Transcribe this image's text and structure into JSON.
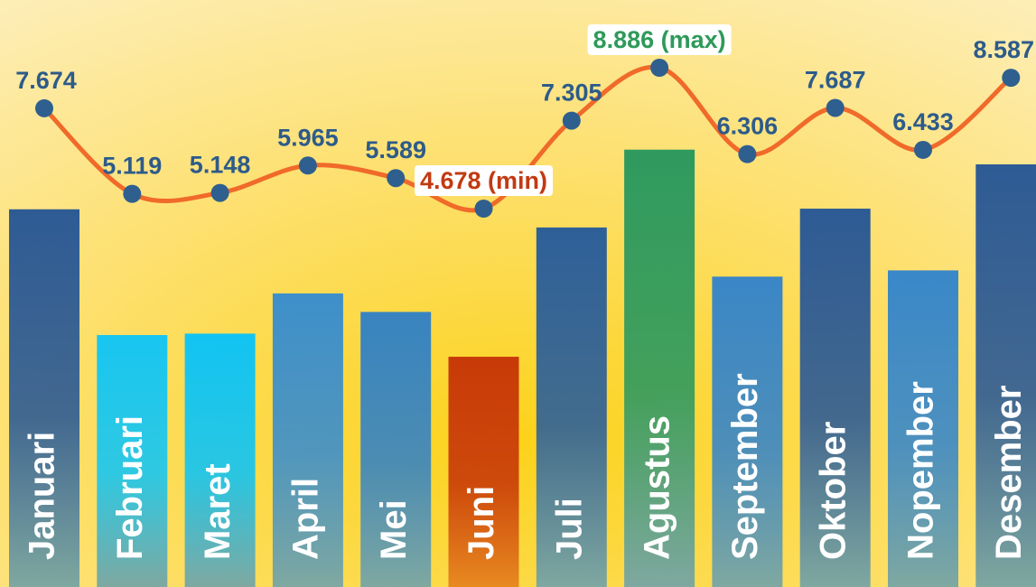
{
  "chart_data": {
    "type": "bar-line",
    "categories": [
      "Januari",
      "Februari",
      "Maret",
      "April",
      "Mei",
      "Juni",
      "Juli",
      "Agustus",
      "September",
      "Oktober",
      "Nopember",
      "Desember"
    ],
    "values": [
      7.674,
      5.119,
      5.148,
      5.965,
      5.589,
      4.678,
      7.305,
      8.886,
      6.306,
      7.687,
      6.433,
      8.587
    ],
    "value_labels": [
      "7.674",
      "5.119",
      "5.148",
      "5.965",
      "5.589",
      "4.678 (min)",
      "7.305",
      "8.886 (max)",
      "6.306",
      "7.687",
      "6.433",
      "8.587"
    ],
    "colors": [
      "#2e5b94",
      "#18c6f0",
      "#12c4f2",
      "#3e8fca",
      "#3884c0",
      "#c83a08",
      "#2e6098",
      "#2f9a5e",
      "#3a86c6",
      "#2e5b94",
      "#3a88c8",
      "#2e5b94"
    ],
    "line_color": "#f06a2a",
    "point_color": "#2f5f8f",
    "label_color": "#2d5b8a",
    "min_color": "#c23a12",
    "max_color": "#2e9a5a"
  }
}
